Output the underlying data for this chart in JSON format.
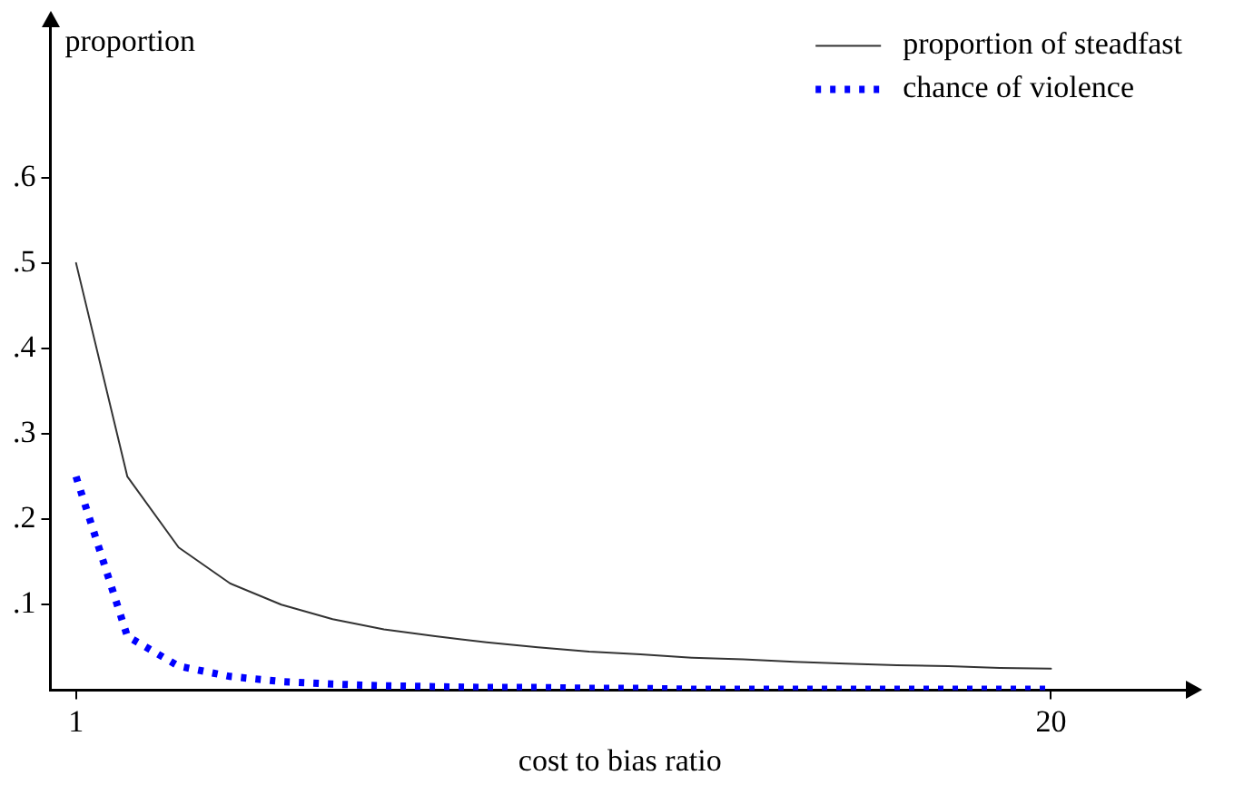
{
  "chart_data": {
    "type": "line",
    "xlabel": "cost to bias ratio",
    "ylabel": "proportion",
    "x": [
      1,
      2,
      3,
      4,
      5,
      6,
      7,
      8,
      9,
      10,
      11,
      12,
      13,
      14,
      15,
      16,
      17,
      18,
      19,
      20
    ],
    "series": [
      {
        "name": "proportion of steadfast",
        "color": "#333333",
        "line_style": "solid",
        "values": [
          0.5,
          0.25,
          0.167,
          0.125,
          0.1,
          0.083,
          0.071,
          0.063,
          0.056,
          0.05,
          0.045,
          0.042,
          0.038,
          0.036,
          0.033,
          0.031,
          0.029,
          0.028,
          0.026,
          0.025
        ]
      },
      {
        "name": "chance of violence",
        "color": "#0000ff",
        "line_style": "dotted",
        "values": [
          0.25,
          0.063,
          0.028,
          0.016,
          0.01,
          0.007,
          0.005,
          0.004,
          0.003,
          0.003,
          0.002,
          0.002,
          0.001,
          0.001,
          0.001,
          0.001,
          0.001,
          0.001,
          0.001,
          0.001
        ]
      }
    ],
    "xlim": [
      0.5,
      22.7
    ],
    "ylim": [
      0,
      0.78
    ],
    "xticks": [
      1,
      20
    ],
    "yticks": [
      {
        "value": 0.1,
        "label": ".1"
      },
      {
        "value": 0.2,
        "label": ".2"
      },
      {
        "value": 0.3,
        "label": ".3"
      },
      {
        "value": 0.4,
        "label": ".4"
      },
      {
        "value": 0.5,
        "label": ".5"
      },
      {
        "value": 0.6,
        "label": ".6"
      }
    ],
    "grid": false,
    "legend": "top right",
    "marker": "none"
  }
}
